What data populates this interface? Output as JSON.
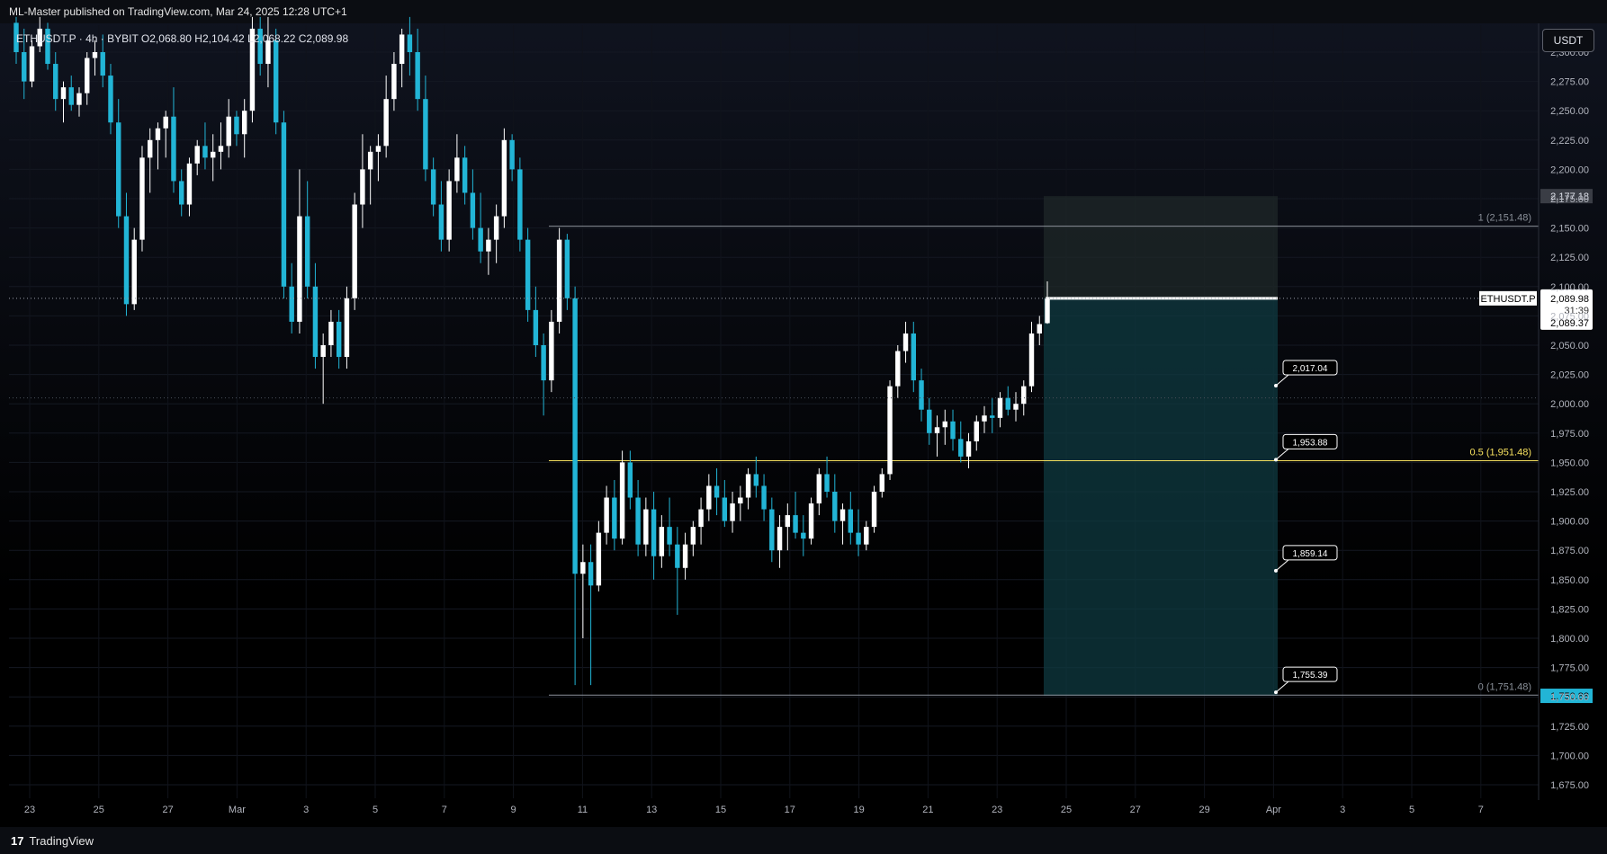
{
  "header": {
    "published": "ML-Master published on TradingView.com, Mar 24, 2025 12:28 UTC+1"
  },
  "legend": {
    "ohlc": "ETHUSDT.P · 4h · BYBIT  O2,068.80  H2,104.42  L2,068.22  C2,089.98"
  },
  "currency": "USDT",
  "footer": {
    "brand_logo": "17",
    "brand": "TradingView"
  },
  "colors": {
    "up": "#ffffff",
    "down": "#22b5d6",
    "fib_mid": "#f6e05e",
    "target_zone": "#0f3a40",
    "stop_zone": "#1f2a2a"
  },
  "chart_data": {
    "type": "candlestick",
    "symbol": "ETHUSDT.P",
    "interval": "4h",
    "exchange": "BYBIT",
    "ohlc": {
      "open": 2068.8,
      "high": 2104.42,
      "low": 2068.22,
      "close": 2089.98
    },
    "x_ticks": [
      "23",
      "25",
      "27",
      "Mar",
      "3",
      "5",
      "7",
      "9",
      "11",
      "13",
      "15",
      "17",
      "19",
      "21",
      "23",
      "25",
      "27",
      "29",
      "Apr",
      "3",
      "5",
      "7"
    ],
    "y_ticks": [
      "2,300.00",
      "2,275.00",
      "2,250.00",
      "2,225.00",
      "2,200.00",
      "2,175.00",
      "2,150.00",
      "2,125.00",
      "2,100.00",
      "2,075.00",
      "2,050.00",
      "2,025.00",
      "2,000.00",
      "1,975.00",
      "1,950.00",
      "1,925.00",
      "1,900.00",
      "1,875.00",
      "1,850.00",
      "1,825.00",
      "1,800.00",
      "1,775.00",
      "1,750.00",
      "1,725.00",
      "1,700.00",
      "1,675.00"
    ],
    "ylim": [
      1662,
      2308
    ],
    "price_line": {
      "label": "ETHUSDT.P",
      "value": "2,089.98",
      "countdown": "31:39",
      "value2": "2,089.37"
    },
    "axis_badges": [
      {
        "text": "2,177.18"
      },
      {
        "text": "1,750.88"
      }
    ],
    "fib_levels": [
      {
        "text": "1 (2,151.48)",
        "value": 2151.48
      },
      {
        "text": "0.5 (1,951.48)",
        "value": 1951.48
      },
      {
        "text": "0 (1,751.48)",
        "value": 1751.48
      }
    ],
    "targets": [
      {
        "text": "2,017.04",
        "value": 2017.04
      },
      {
        "text": "1,953.88",
        "value": 1953.88
      },
      {
        "text": "1,859.14",
        "value": 1859.14
      },
      {
        "text": "1,755.39",
        "value": 1755.39
      }
    ],
    "position": {
      "entry": 2089.98,
      "stop": 2177.18,
      "target": 1750.88
    },
    "candles": [
      [
        2325,
        2340,
        2290,
        2300
      ],
      [
        2300,
        2320,
        2260,
        2275
      ],
      [
        2275,
        2310,
        2270,
        2305
      ],
      [
        2305,
        2330,
        2300,
        2320
      ],
      [
        2320,
        2325,
        2285,
        2290
      ],
      [
        2290,
        2300,
        2250,
        2260
      ],
      [
        2260,
        2275,
        2240,
        2270
      ],
      [
        2270,
        2280,
        2250,
        2255
      ],
      [
        2255,
        2270,
        2245,
        2265
      ],
      [
        2265,
        2300,
        2255,
        2295
      ],
      [
        2295,
        2310,
        2280,
        2300
      ],
      [
        2300,
        2315,
        2270,
        2280
      ],
      [
        2280,
        2290,
        2230,
        2240
      ],
      [
        2240,
        2260,
        2150,
        2160
      ],
      [
        2160,
        2180,
        2075,
        2085
      ],
      [
        2085,
        2150,
        2080,
        2140
      ],
      [
        2140,
        2220,
        2130,
        2210
      ],
      [
        2210,
        2235,
        2180,
        2225
      ],
      [
        2225,
        2240,
        2200,
        2235
      ],
      [
        2235,
        2250,
        2210,
        2245
      ],
      [
        2245,
        2270,
        2180,
        2190
      ],
      [
        2190,
        2200,
        2160,
        2170
      ],
      [
        2170,
        2210,
        2160,
        2205
      ],
      [
        2205,
        2225,
        2195,
        2220
      ],
      [
        2220,
        2240,
        2200,
        2210
      ],
      [
        2210,
        2230,
        2190,
        2215
      ],
      [
        2215,
        2240,
        2200,
        2220
      ],
      [
        2220,
        2260,
        2210,
        2245
      ],
      [
        2245,
        2250,
        2220,
        2230
      ],
      [
        2230,
        2260,
        2210,
        2250
      ],
      [
        2250,
        2330,
        2240,
        2320
      ],
      [
        2320,
        2340,
        2280,
        2290
      ],
      [
        2290,
        2330,
        2270,
        2310
      ],
      [
        2310,
        2320,
        2230,
        2240
      ],
      [
        2240,
        2250,
        2090,
        2100
      ],
      [
        2100,
        2120,
        2060,
        2070
      ],
      [
        2070,
        2200,
        2060,
        2160
      ],
      [
        2160,
        2190,
        2090,
        2100
      ],
      [
        2100,
        2120,
        2030,
        2040
      ],
      [
        2040,
        2060,
        2000,
        2050
      ],
      [
        2050,
        2080,
        2040,
        2070
      ],
      [
        2070,
        2080,
        2030,
        2040
      ],
      [
        2040,
        2100,
        2030,
        2090
      ],
      [
        2090,
        2180,
        2080,
        2170
      ],
      [
        2170,
        2230,
        2150,
        2200
      ],
      [
        2200,
        2220,
        2170,
        2215
      ],
      [
        2215,
        2230,
        2190,
        2220
      ],
      [
        2220,
        2280,
        2210,
        2260
      ],
      [
        2260,
        2300,
        2250,
        2290
      ],
      [
        2290,
        2320,
        2270,
        2315
      ],
      [
        2315,
        2335,
        2280,
        2300
      ],
      [
        2300,
        2320,
        2250,
        2260
      ],
      [
        2260,
        2280,
        2190,
        2200
      ],
      [
        2200,
        2210,
        2160,
        2170
      ],
      [
        2170,
        2190,
        2130,
        2140
      ],
      [
        2140,
        2200,
        2130,
        2190
      ],
      [
        2190,
        2230,
        2180,
        2210
      ],
      [
        2210,
        2220,
        2170,
        2180
      ],
      [
        2180,
        2200,
        2140,
        2150
      ],
      [
        2150,
        2180,
        2120,
        2130
      ],
      [
        2130,
        2150,
        2110,
        2140
      ],
      [
        2140,
        2170,
        2120,
        2160
      ],
      [
        2160,
        2235,
        2150,
        2225
      ],
      [
        2225,
        2230,
        2190,
        2200
      ],
      [
        2200,
        2210,
        2130,
        2140
      ],
      [
        2140,
        2150,
        2070,
        2080
      ],
      [
        2080,
        2100,
        2040,
        2050
      ],
      [
        2050,
        2060,
        1990,
        2020
      ],
      [
        2020,
        2080,
        2010,
        2070
      ],
      [
        2070,
        2150,
        2060,
        2140
      ],
      [
        2140,
        2145,
        2080,
        2090
      ],
      [
        2090,
        2100,
        1760,
        1855
      ],
      [
        1855,
        1880,
        1800,
        1865
      ],
      [
        1865,
        1880,
        1760,
        1845
      ],
      [
        1845,
        1900,
        1840,
        1890
      ],
      [
        1890,
        1930,
        1880,
        1920
      ],
      [
        1920,
        1935,
        1875,
        1885
      ],
      [
        1885,
        1960,
        1880,
        1950
      ],
      [
        1950,
        1960,
        1910,
        1920
      ],
      [
        1920,
        1935,
        1870,
        1880
      ],
      [
        1880,
        1920,
        1870,
        1910
      ],
      [
        1910,
        1925,
        1850,
        1870
      ],
      [
        1870,
        1905,
        1860,
        1895
      ],
      [
        1895,
        1920,
        1870,
        1880
      ],
      [
        1880,
        1895,
        1820,
        1860
      ],
      [
        1860,
        1890,
        1850,
        1880
      ],
      [
        1880,
        1900,
        1870,
        1895
      ],
      [
        1895,
        1920,
        1880,
        1910
      ],
      [
        1910,
        1940,
        1900,
        1930
      ],
      [
        1930,
        1945,
        1905,
        1920
      ],
      [
        1920,
        1935,
        1895,
        1900
      ],
      [
        1900,
        1925,
        1890,
        1915
      ],
      [
        1915,
        1930,
        1900,
        1920
      ],
      [
        1920,
        1945,
        1910,
        1940
      ],
      [
        1940,
        1955,
        1920,
        1930
      ],
      [
        1930,
        1940,
        1900,
        1910
      ],
      [
        1910,
        1920,
        1865,
        1875
      ],
      [
        1875,
        1905,
        1860,
        1895
      ],
      [
        1895,
        1915,
        1875,
        1905
      ],
      [
        1905,
        1925,
        1885,
        1890
      ],
      [
        1890,
        1905,
        1870,
        1885
      ],
      [
        1885,
        1920,
        1880,
        1915
      ],
      [
        1915,
        1945,
        1905,
        1940
      ],
      [
        1940,
        1955,
        1920,
        1925
      ],
      [
        1925,
        1940,
        1890,
        1900
      ],
      [
        1900,
        1915,
        1880,
        1910
      ],
      [
        1910,
        1925,
        1880,
        1890
      ],
      [
        1890,
        1910,
        1870,
        1880
      ],
      [
        1880,
        1900,
        1875,
        1895
      ],
      [
        1895,
        1930,
        1890,
        1925
      ],
      [
        1925,
        1945,
        1920,
        1940
      ],
      [
        1940,
        2020,
        1935,
        2015
      ],
      [
        2015,
        2050,
        2005,
        2045
      ],
      [
        2045,
        2070,
        2035,
        2060
      ],
      [
        2060,
        2070,
        2010,
        2020
      ],
      [
        2020,
        2030,
        1985,
        1995
      ],
      [
        1995,
        2005,
        1965,
        1975
      ],
      [
        1975,
        1990,
        1955,
        1980
      ],
      [
        1980,
        1995,
        1965,
        1985
      ],
      [
        1985,
        1995,
        1960,
        1970
      ],
      [
        1970,
        1985,
        1950,
        1955
      ],
      [
        1955,
        1975,
        1945,
        1968
      ],
      [
        1968,
        1990,
        1960,
        1985
      ],
      [
        1985,
        1998,
        1975,
        1990
      ],
      [
        1990,
        2005,
        1975,
        1988
      ],
      [
        1988,
        2010,
        1980,
        2005
      ],
      [
        2005,
        2015,
        1990,
        1995
      ],
      [
        1995,
        2010,
        1985,
        2000
      ],
      [
        2000,
        2020,
        1990,
        2015
      ],
      [
        2015,
        2070,
        2010,
        2060
      ],
      [
        2060,
        2075,
        2050,
        2068
      ],
      [
        2068.8,
        2104.42,
        2068.22,
        2089.98
      ]
    ]
  }
}
